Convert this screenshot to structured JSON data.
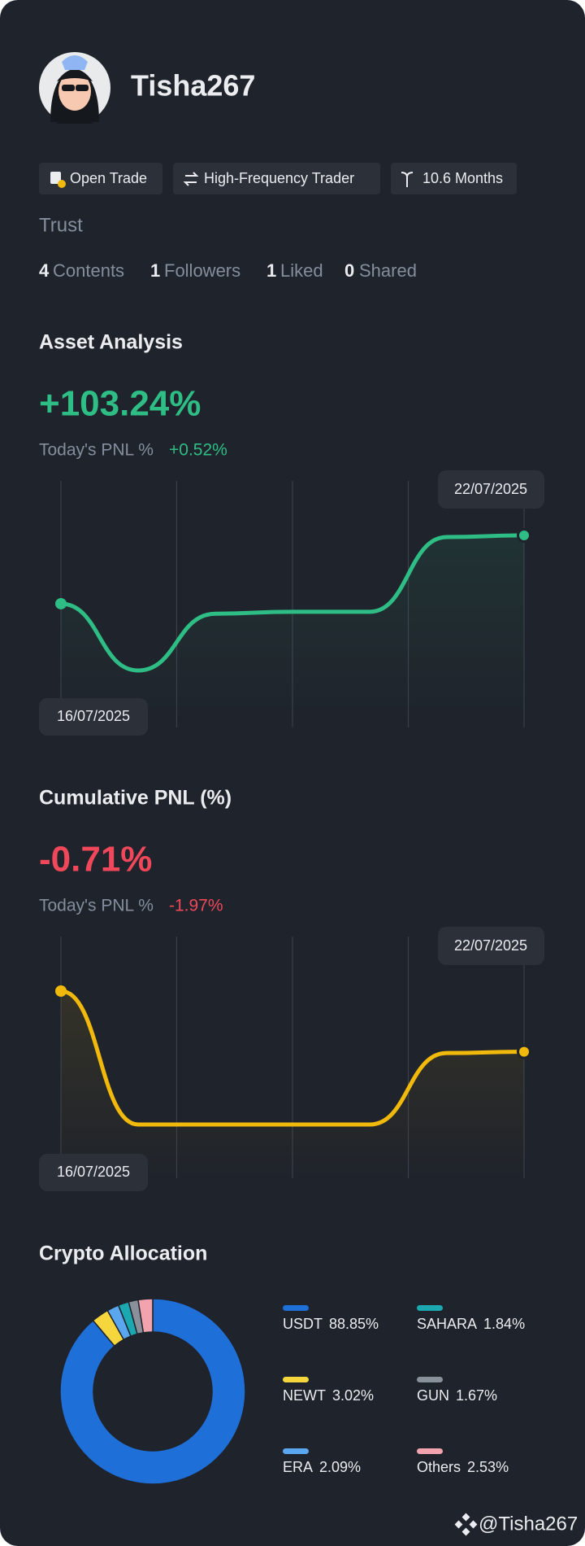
{
  "profile": {
    "name": "Tisha267",
    "tags": [
      "Open Trade",
      "High-Frequency Trader",
      "10.6 Months"
    ],
    "bio": "Trust",
    "stats": [
      {
        "count": 4,
        "label": "Contents"
      },
      {
        "count": 1,
        "label": "Followers"
      },
      {
        "count": 1,
        "label": "Liked"
      },
      {
        "count": 0,
        "label": "Shared"
      }
    ]
  },
  "asset_analysis": {
    "title": "Asset Analysis",
    "value": "+103.24%",
    "pnl_label": "Today's PNL %",
    "pnl_value": "+0.52%"
  },
  "cumulative_pnl": {
    "title": "Cumulative PNL (%)",
    "value": "-0.71%",
    "pnl_label": "Today's PNL %",
    "pnl_value": "-1.97%"
  },
  "allocation": {
    "title": "Crypto Allocation"
  },
  "chart_data": [
    {
      "type": "line",
      "categories": [
        "16/07/2025",
        null,
        null,
        null,
        null,
        null,
        "22/07/2025"
      ],
      "values": [
        93,
        83,
        91.5,
        91.8,
        91.8,
        103,
        103.24
      ],
      "color": "#2ebd85"
    },
    {
      "type": "line",
      "categories": [
        "16/07/2025",
        null,
        null,
        null,
        null,
        null,
        "22/07/2025"
      ],
      "values": [
        1.2,
        -3.0,
        -3.0,
        -3.0,
        -3.0,
        -0.75,
        -0.71
      ],
      "color": "#f0b90b"
    },
    {
      "type": "pie",
      "categories": [
        "USDT",
        "NEWT",
        "ERA",
        "SAHARA",
        "GUN",
        "Others"
      ],
      "values": [
        88.85,
        3.02,
        2.09,
        1.84,
        1.67,
        2.53
      ],
      "value_labels": [
        "88.85%",
        "3.02%",
        "2.09%",
        "1.84%",
        "1.67%",
        "2.53%"
      ],
      "colors": [
        "#1f6fd8",
        "#f5d63d",
        "#5aa7f0",
        "#1ba8b0",
        "#8a9099",
        "#f3a3ad"
      ]
    }
  ],
  "footer": {
    "handle": "@Tisha267"
  }
}
